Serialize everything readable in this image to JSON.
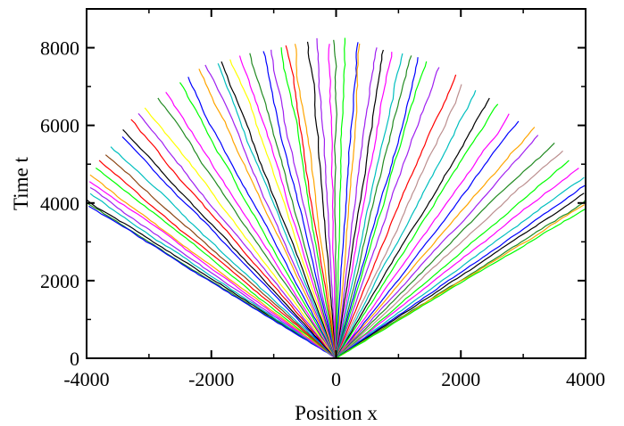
{
  "chart_data": {
    "type": "line",
    "title": "",
    "xlabel": "Position x",
    "ylabel": "Time t",
    "xlim": [
      -4000,
      4000
    ],
    "ylim": [
      0,
      9000
    ],
    "xticks": [
      -4000,
      -2000,
      0,
      2000,
      4000
    ],
    "yticks": [
      0,
      2000,
      4000,
      6000,
      8000
    ],
    "xtick_labels": [
      "-4000",
      "-2000",
      "0",
      "2000",
      "4000"
    ],
    "ytick_labels": [
      "0",
      "2000",
      "4000",
      "6000",
      "8000"
    ],
    "grid": false,
    "legend": false,
    "description_of_series": "many noisy trajectories fanning out from origin (0,0); each series listed by its endpoint",
    "series": [
      {
        "color": "#000000",
        "end": [
          -4000,
          4080
        ]
      },
      {
        "color": "#228b22",
        "end": [
          -4000,
          4000
        ]
      },
      {
        "color": "#0000ff",
        "end": [
          -4000,
          3920
        ]
      },
      {
        "color": "#00bfbf",
        "end": [
          -4000,
          4250
        ]
      },
      {
        "color": "#a020f0",
        "end": [
          -4000,
          4400
        ]
      },
      {
        "color": "#ff00ff",
        "end": [
          -3960,
          4550
        ]
      },
      {
        "color": "#ffa500",
        "end": [
          -3930,
          4720
        ]
      },
      {
        "color": "#00ff00",
        "end": [
          -3850,
          4900
        ]
      },
      {
        "color": "#ff0000",
        "end": [
          -3800,
          5100
        ]
      },
      {
        "color": "#8b4513",
        "end": [
          -3700,
          5250
        ]
      },
      {
        "color": "#00bfbf",
        "end": [
          -3600,
          5450
        ]
      },
      {
        "color": "#0000ff",
        "end": [
          -3500,
          5700
        ]
      },
      {
        "color": "#000000",
        "end": [
          -3400,
          5900
        ]
      },
      {
        "color": "#ff0000",
        "end": [
          -3300,
          6150
        ]
      },
      {
        "color": "#a020f0",
        "end": [
          -3150,
          6300
        ]
      },
      {
        "color": "#ffff00",
        "end": [
          -3000,
          6450
        ]
      },
      {
        "color": "#228b22",
        "end": [
          -2850,
          6700
        ]
      },
      {
        "color": "#ff00ff",
        "end": [
          -2700,
          6850
        ]
      },
      {
        "color": "#00ff00",
        "end": [
          -2550,
          7100
        ]
      },
      {
        "color": "#0000ff",
        "end": [
          -2400,
          7250
        ]
      },
      {
        "color": "#ffa500",
        "end": [
          -2250,
          7450
        ]
      },
      {
        "color": "#a020f0",
        "end": [
          -2100,
          7550
        ]
      },
      {
        "color": "#00bfbf",
        "end": [
          -1950,
          7600
        ]
      },
      {
        "color": "#000000",
        "end": [
          -1800,
          7650
        ]
      },
      {
        "color": "#ffff00",
        "end": [
          -1650,
          7700
        ]
      },
      {
        "color": "#ff00ff",
        "end": [
          -1500,
          7800
        ]
      },
      {
        "color": "#228b22",
        "end": [
          -1350,
          7850
        ]
      },
      {
        "color": "#0000ff",
        "end": [
          -1200,
          7900
        ]
      },
      {
        "color": "#a020f0",
        "end": [
          -1050,
          7950
        ]
      },
      {
        "color": "#00ff00",
        "end": [
          -900,
          8000
        ]
      },
      {
        "color": "#ff0000",
        "end": [
          -750,
          8050
        ]
      },
      {
        "color": "#ffa500",
        "end": [
          -600,
          8100
        ]
      },
      {
        "color": "#000000",
        "end": [
          -450,
          8150
        ]
      },
      {
        "color": "#a020f0",
        "end": [
          -300,
          8250
        ]
      },
      {
        "color": "#ff00ff",
        "end": [
          -150,
          8100
        ]
      },
      {
        "color": "#228b22",
        "end": [
          0,
          8200
        ]
      },
      {
        "color": "#00ff00",
        "end": [
          150,
          8250
        ]
      },
      {
        "color": "#0000ff",
        "end": [
          300,
          8150
        ]
      },
      {
        "color": "#ffa500",
        "end": [
          450,
          8100
        ]
      },
      {
        "color": "#a020f0",
        "end": [
          600,
          8000
        ]
      },
      {
        "color": "#000000",
        "end": [
          750,
          7950
        ]
      },
      {
        "color": "#ff00ff",
        "end": [
          900,
          7900
        ]
      },
      {
        "color": "#00bfbf",
        "end": [
          1050,
          7850
        ]
      },
      {
        "color": "#228b22",
        "end": [
          1200,
          7800
        ]
      },
      {
        "color": "#0000ff",
        "end": [
          1350,
          7750
        ]
      },
      {
        "color": "#00ff00",
        "end": [
          1500,
          7650
        ]
      },
      {
        "color": "#a020f0",
        "end": [
          1650,
          7500
        ]
      },
      {
        "color": "#ff0000",
        "end": [
          1850,
          7300
        ]
      },
      {
        "color": "#bc8f8f",
        "end": [
          2050,
          7050
        ]
      },
      {
        "color": "#00bfbf",
        "end": [
          2250,
          6900
        ]
      },
      {
        "color": "#000000",
        "end": [
          2450,
          6700
        ]
      },
      {
        "color": "#00ff00",
        "end": [
          2600,
          6550
        ]
      },
      {
        "color": "#ff00ff",
        "end": [
          2800,
          6300
        ]
      },
      {
        "color": "#0000ff",
        "end": [
          3000,
          6100
        ]
      },
      {
        "color": "#ffa500",
        "end": [
          3150,
          5950
        ]
      },
      {
        "color": "#a020f0",
        "end": [
          3300,
          5750
        ]
      },
      {
        "color": "#228b22",
        "end": [
          3450,
          5550
        ]
      },
      {
        "color": "#bc8f8f",
        "end": [
          3600,
          5350
        ]
      },
      {
        "color": "#00ff00",
        "end": [
          3750,
          5100
        ]
      },
      {
        "color": "#ff00ff",
        "end": [
          3850,
          4900
        ]
      },
      {
        "color": "#00bfbf",
        "end": [
          3950,
          4650
        ]
      },
      {
        "color": "#0000ff",
        "end": [
          4000,
          4450
        ]
      },
      {
        "color": "#000000",
        "end": [
          4000,
          4250
        ]
      },
      {
        "color": "#228b22",
        "end": [
          4000,
          4080
        ]
      },
      {
        "color": "#ffa500",
        "end": [
          4000,
          3950
        ]
      },
      {
        "color": "#00ff00",
        "end": [
          4000,
          3850
        ]
      }
    ]
  }
}
